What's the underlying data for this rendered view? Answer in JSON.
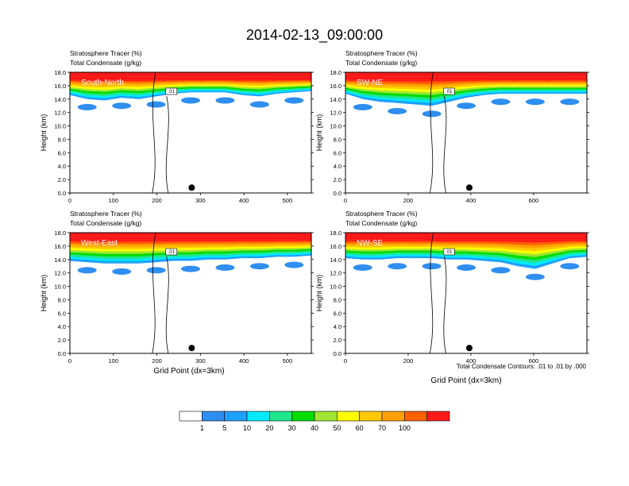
{
  "figure": {
    "title": "2014-02-13_09:00:00",
    "note": "Total Condensate Contours: .01 to .01 by .000",
    "xlabel": "Grid Point (dx=3km)"
  },
  "chart_data": [
    {
      "type": "heatmap",
      "var_top": "Stratosphere Tracer   (%)",
      "var_bot": "Total Condensate   (g/kg)",
      "label": "South-North",
      "xticks": [
        "0",
        "100",
        "200",
        "300",
        "400",
        "500"
      ],
      "yticks": [
        "0.0",
        "2.0",
        "4.0",
        "6.0",
        "8.0",
        "10.0",
        "12.0",
        "14.0",
        "16.0",
        "18.0"
      ],
      "xlim": [
        0,
        555
      ],
      "ylim": [
        0,
        18
      ],
      "ylabel": "Height (km)",
      "contour_label": ".01",
      "marker_x": 280,
      "tracer_top_km": [
        14.6,
        14.0,
        13.8,
        14.2,
        14.0,
        14.4,
        14.8,
        15.0,
        15.0,
        15.0,
        14.6,
        14.4,
        14.8,
        15.0,
        15.2
      ]
    },
    {
      "type": "heatmap",
      "var_top": "Stratosphere Tracer   (%)",
      "var_bot": "Total Condensate   (g/kg)",
      "label": "SW-NE",
      "xticks": [
        "0",
        "200",
        "400",
        "600"
      ],
      "yticks": [
        "0.0",
        "2.0",
        "4.0",
        "6.0",
        "8.0",
        "10.0",
        "12.0",
        "14.0",
        "16.0",
        "18.0"
      ],
      "xlim": [
        0,
        770
      ],
      "ylim": [
        0,
        18
      ],
      "ylabel": "Height (km)",
      "contour_label": ".01",
      "marker_x": 395,
      "tracer_top_km": [
        14.8,
        14.0,
        13.6,
        13.4,
        13.2,
        13.0,
        13.6,
        14.2,
        14.6,
        14.8,
        14.8,
        14.8,
        14.8,
        14.8,
        14.8
      ]
    },
    {
      "type": "heatmap",
      "var_top": "Stratosphere Tracer   (%)",
      "var_bot": "Total Condensate   (g/kg)",
      "label": "West-East",
      "xticks": [
        "0",
        "100",
        "200",
        "300",
        "400",
        "500"
      ],
      "yticks": [
        "0.0",
        "2.0",
        "4.0",
        "6.0",
        "8.0",
        "10.0",
        "12.0",
        "14.0",
        "16.0",
        "18.0"
      ],
      "xlim": [
        0,
        555
      ],
      "ylim": [
        0,
        18
      ],
      "ylabel": "Height (km)",
      "contour_label": ".01",
      "marker_x": 280,
      "tracer_top_km": [
        13.8,
        13.6,
        13.4,
        13.4,
        13.4,
        13.6,
        13.8,
        13.8,
        14.0,
        14.0,
        14.2,
        14.2,
        14.4,
        14.4,
        14.6
      ]
    },
    {
      "type": "heatmap",
      "var_top": "Stratosphere Tracer   (%)",
      "var_bot": "Total Condensate   (g/kg)",
      "label": "NW-SE",
      "xticks": [
        "0",
        "200",
        "400",
        "600"
      ],
      "yticks": [
        "0.0",
        "2.0",
        "4.0",
        "6.0",
        "8.0",
        "10.0",
        "12.0",
        "14.0",
        "16.0",
        "18.0"
      ],
      "xlim": [
        0,
        770
      ],
      "ylim": [
        0,
        18
      ],
      "ylabel": "Height (km)",
      "contour_label": ".01",
      "marker_x": 395,
      "tracer_top_km": [
        14.2,
        14.0,
        14.0,
        14.2,
        14.2,
        14.2,
        14.0,
        14.0,
        13.8,
        13.6,
        13.0,
        12.6,
        13.4,
        14.2,
        14.4
      ]
    }
  ],
  "colorbar": {
    "levels": [
      "1",
      "5",
      "10",
      "20",
      "30",
      "40",
      "50",
      "60",
      "70",
      "100"
    ],
    "colors": [
      "#ffffff",
      "#2f8ef0",
      "#1ea0ff",
      "#00eaff",
      "#1ee68c",
      "#00dc00",
      "#a0e632",
      "#ffff00",
      "#ffc800",
      "#ffa000",
      "#ff6000",
      "#ff1a1a"
    ]
  }
}
